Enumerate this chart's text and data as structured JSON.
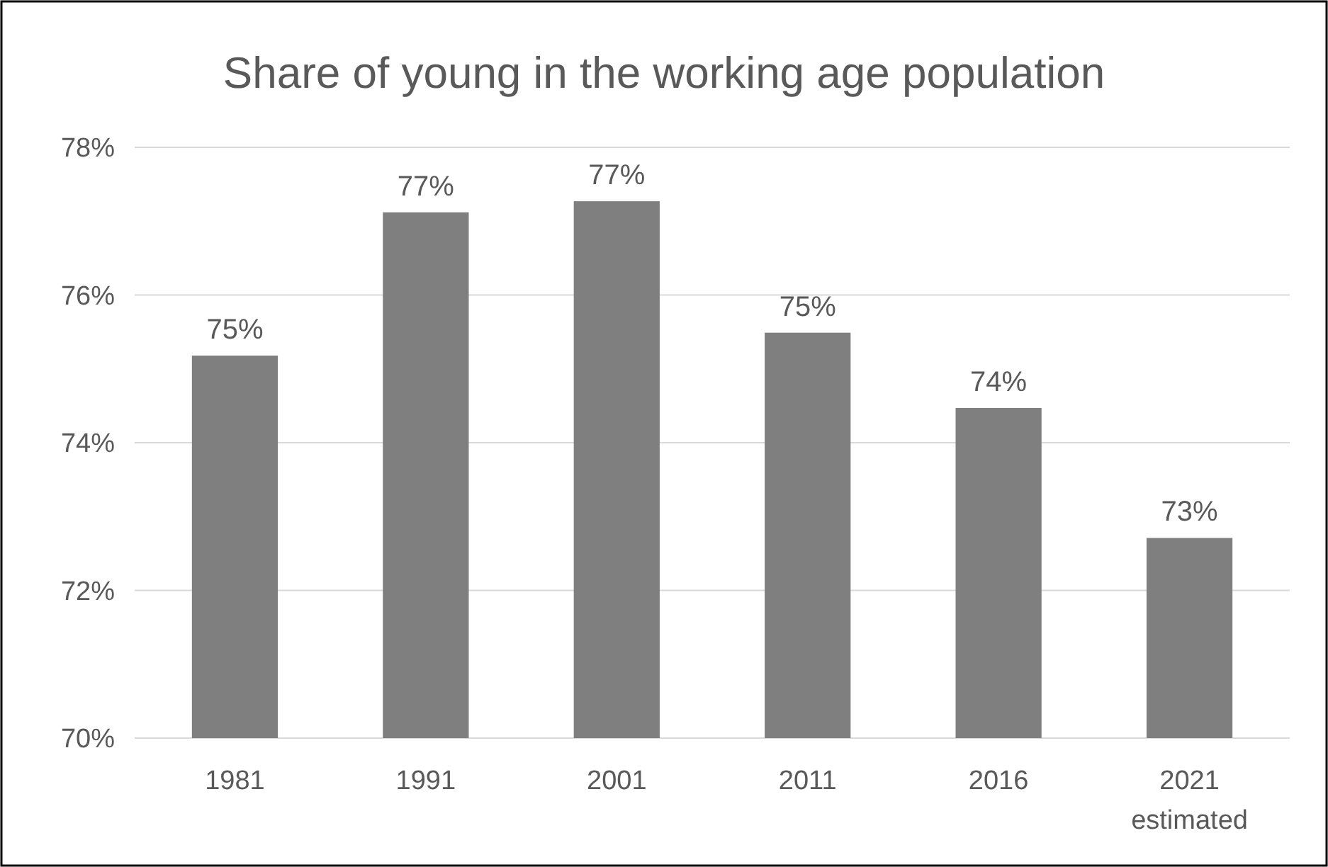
{
  "chart_data": {
    "type": "bar",
    "title": "Share of young in the working age population",
    "categories": [
      "1981",
      "1991",
      "2001",
      "2011",
      "2016",
      "2021\nestimated"
    ],
    "values": [
      75.18,
      77.12,
      77.27,
      75.49,
      74.47,
      72.71
    ],
    "value_labels": [
      "75%",
      "77%",
      "77%",
      "75%",
      "74%",
      "73%"
    ],
    "color": "#7f7f7f",
    "ylim": [
      70,
      78
    ],
    "yticks": [
      {
        "value": 70,
        "label": "70%"
      },
      {
        "value": 72,
        "label": "72%"
      },
      {
        "value": 74,
        "label": "74%"
      },
      {
        "value": 76,
        "label": "76%"
      },
      {
        "value": 78,
        "label": "78%"
      }
    ],
    "grid": "y"
  }
}
